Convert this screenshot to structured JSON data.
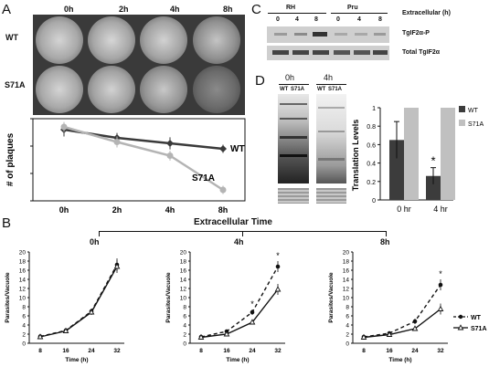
{
  "panels": {
    "a": "A",
    "b": "B",
    "c": "C",
    "d": "D"
  },
  "panel_a": {
    "time_labels": [
      "0h",
      "2h",
      "4h",
      "8h"
    ],
    "row_labels": [
      "WT",
      "S71A"
    ]
  },
  "panel_c": {
    "group_labels": [
      "RH",
      "Pru"
    ],
    "lane_labels": [
      "0",
      "4",
      "8",
      "0",
      "4",
      "8"
    ],
    "axis_label": "Extracellular (h)",
    "band_labels": [
      "TgIF2α-P",
      "Total TgIF2α"
    ]
  },
  "panel_d": {
    "blot_time_labels": [
      "0h",
      "4h"
    ],
    "lane_labels": [
      "WT",
      "S71A",
      "WT",
      "S71A"
    ]
  },
  "panel_b": {
    "title": "Extracellular Time",
    "time_labels": [
      "0h",
      "4h",
      "8h"
    ]
  },
  "chart_data": [
    {
      "id": "plaques",
      "type": "line",
      "categories": [
        "0h",
        "2h",
        "4h",
        "8h"
      ],
      "ylabel": "# of plaques",
      "ylim": [
        0,
        300
      ],
      "yticks": [
        0,
        100,
        200,
        300
      ],
      "series": [
        {
          "name": "WT",
          "values": [
            260,
            230,
            210,
            190
          ],
          "errors": [
            25,
            18,
            22,
            15
          ],
          "color": "#3a3a3a"
        },
        {
          "name": "S71A",
          "values": [
            270,
            215,
            165,
            40
          ],
          "errors": [
            18,
            20,
            18,
            15
          ],
          "color": "#b4b4b4"
        }
      ]
    },
    {
      "id": "translation",
      "type": "bar",
      "categories": [
        "0 hr",
        "4 hr"
      ],
      "ylabel": "Translation Levels",
      "ylim": [
        0,
        1
      ],
      "yticks": [
        "0",
        "0.2",
        "0.4",
        "0.6",
        "0.8",
        "1"
      ],
      "annotation": "*",
      "series": [
        {
          "name": "WT",
          "values": [
            0.65,
            0.26
          ],
          "errors": [
            0.2,
            0.09
          ],
          "color": "#3c3c3c"
        },
        {
          "name": "S71A",
          "values": [
            1.0,
            1.0
          ],
          "errors": [
            0,
            0
          ],
          "color": "#c0c0c0"
        }
      ]
    },
    {
      "id": "growth_0h",
      "type": "line",
      "x": [
        8,
        16,
        24,
        32
      ],
      "xlabel": "Time (h)",
      "ylabel": "Parasites/Vacuole",
      "ylim": [
        0,
        20
      ],
      "yticks": [
        0,
        2,
        4,
        6,
        8,
        10,
        12,
        14,
        16,
        18,
        20
      ],
      "annotations": [],
      "series": [
        {
          "name": "WT",
          "values": [
            1.5,
            2.8,
            7.0,
            17.2
          ],
          "errors": [
            0.2,
            0.3,
            0.6,
            1.4
          ]
        },
        {
          "name": "S71A",
          "values": [
            1.4,
            2.7,
            6.8,
            16.8
          ],
          "errors": [
            0.2,
            0.3,
            0.6,
            1.4
          ]
        }
      ]
    },
    {
      "id": "growth_4h",
      "type": "line",
      "x": [
        8,
        16,
        24,
        32
      ],
      "xlabel": "Time (h)",
      "ylabel": "Parasites/Vacuole",
      "ylim": [
        0,
        20
      ],
      "yticks": [
        0,
        2,
        4,
        6,
        8,
        10,
        12,
        14,
        16,
        18,
        20
      ],
      "annotations": [
        {
          "x": 24,
          "text": "*"
        },
        {
          "x": 32,
          "text": "*"
        }
      ],
      "series": [
        {
          "name": "WT",
          "values": [
            1.4,
            2.6,
            6.8,
            16.8
          ],
          "errors": [
            0.2,
            0.3,
            0.6,
            1.2
          ]
        },
        {
          "name": "S71A",
          "values": [
            1.3,
            2.0,
            4.6,
            11.8
          ],
          "errors": [
            0.2,
            0.3,
            0.4,
            1.2
          ]
        }
      ]
    },
    {
      "id": "growth_8h",
      "type": "line",
      "x": [
        8,
        16,
        24,
        32
      ],
      "xlabel": "Time (h)",
      "ylabel": "Parasites/Vacuole",
      "ylim": [
        0,
        20
      ],
      "yticks": [
        0,
        2,
        4,
        6,
        8,
        10,
        12,
        14,
        16,
        18,
        20
      ],
      "annotations": [
        {
          "x": 32,
          "text": "*"
        }
      ],
      "legend": [
        "WT",
        "S71A"
      ],
      "series": [
        {
          "name": "WT",
          "values": [
            1.4,
            2.2,
            4.8,
            12.8
          ],
          "errors": [
            0.2,
            0.3,
            0.6,
            1.2
          ]
        },
        {
          "name": "S71A",
          "values": [
            1.3,
            1.9,
            3.2,
            7.5
          ],
          "errors": [
            0.2,
            0.3,
            0.4,
            1.2
          ]
        }
      ]
    }
  ]
}
